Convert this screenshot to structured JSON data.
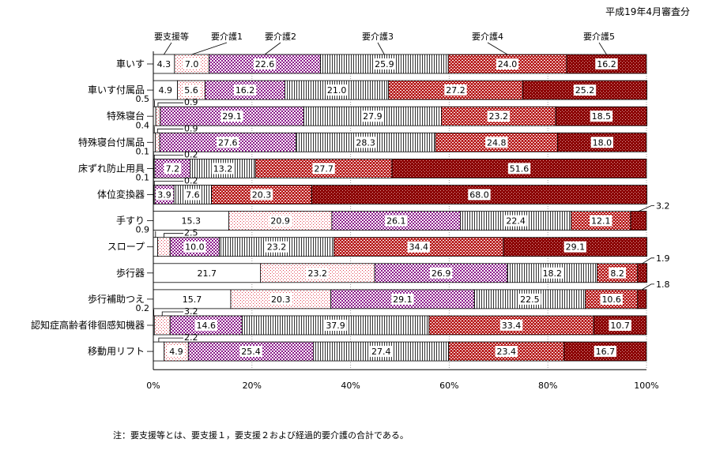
{
  "header_note": "平成19年4月審査分",
  "footnote": "注：要支援等とは、要支援１，要支援２および経過的要介護の合計である。",
  "chart_data": {
    "type": "bar",
    "orientation": "horizontal",
    "stacked": true,
    "percent_stacked": true,
    "title": "",
    "xlim": [
      0,
      100
    ],
    "x_ticks": [
      "0%",
      "20%",
      "40%",
      "60%",
      "80%",
      "100%"
    ],
    "legend_placement": "top (callout labels)",
    "categories": [
      "車いす",
      "車いす付属品",
      "特殊寝台",
      "特殊寝台付属品",
      "床ずれ防止用具",
      "体位変換器",
      "手すり",
      "スロープ",
      "歩行器",
      "歩行補助つえ",
      "認知症高齢者徘徊感知機器",
      "移動用リフト"
    ],
    "series": [
      {
        "name": "要支援等",
        "pattern": "white",
        "values": [
          4.3,
          4.9,
          0.5,
          0.4,
          0.1,
          0.1,
          15.3,
          0.9,
          21.7,
          15.7,
          0.2,
          2.2
        ]
      },
      {
        "name": "要介護1",
        "pattern": "sparse-red-dots",
        "values": [
          7.0,
          5.6,
          0.9,
          0.9,
          0.2,
          0.2,
          20.9,
          2.5,
          23.2,
          20.3,
          3.2,
          4.9
        ]
      },
      {
        "name": "要介護2",
        "pattern": "purple-dots",
        "values": [
          22.6,
          16.2,
          29.1,
          27.6,
          7.2,
          3.9,
          26.1,
          10.0,
          26.9,
          29.1,
          14.6,
          25.4
        ]
      },
      {
        "name": "要介護3",
        "pattern": "vertical-lines",
        "values": [
          25.9,
          21.0,
          27.9,
          28.3,
          13.2,
          7.6,
          22.4,
          23.2,
          18.2,
          22.5,
          37.9,
          27.4
        ]
      },
      {
        "name": "要介護4",
        "pattern": "red-hatch",
        "values": [
          24.0,
          27.2,
          23.2,
          24.8,
          27.7,
          20.3,
          12.1,
          34.4,
          8.2,
          10.6,
          33.4,
          23.4
        ]
      },
      {
        "name": "要介護5",
        "pattern": "dark-red",
        "values": [
          16.2,
          25.2,
          18.5,
          18.0,
          51.6,
          68.0,
          3.2,
          29.1,
          1.9,
          1.8,
          10.7,
          16.7
        ]
      }
    ],
    "colors": {
      "outline": "#000000",
      "red_dots": "#e04050",
      "purple": "#8a1a8a",
      "red_mid": "#b81e1e",
      "dark_red": "#8a0000"
    }
  }
}
